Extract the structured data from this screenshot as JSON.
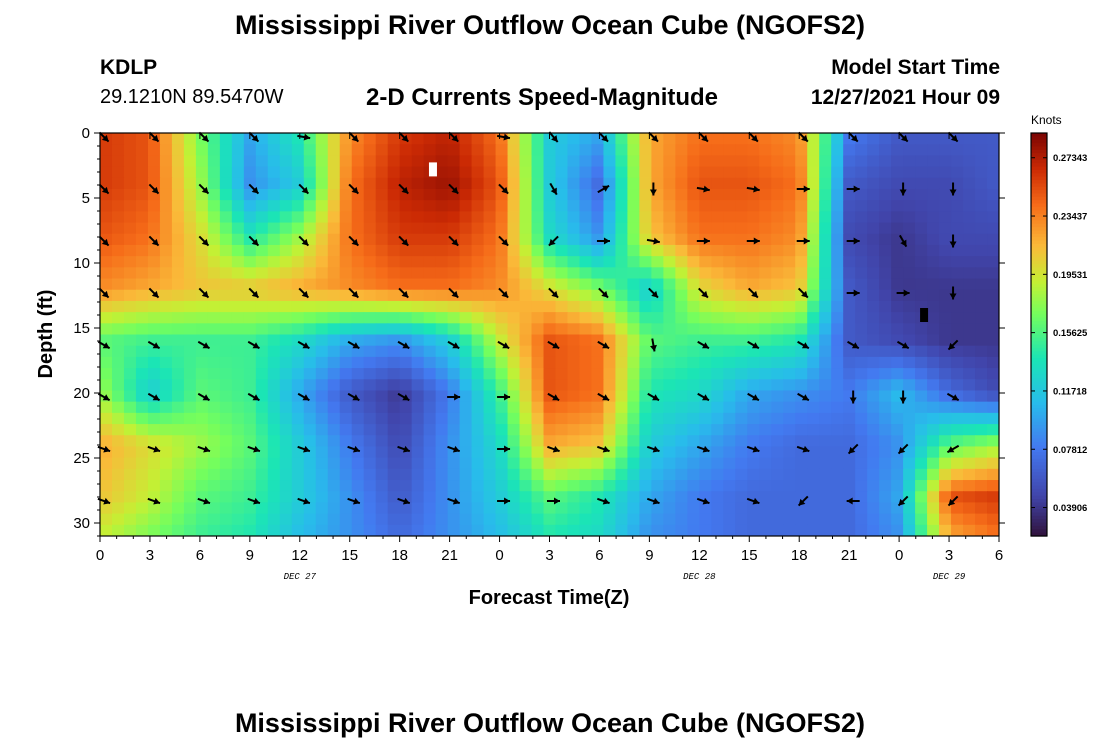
{
  "header": {
    "title": "Mississippi River Outflow Ocean Cube (NGOFS2)",
    "station": "KDLP",
    "coords": "29.1210N  89.5470W",
    "subtitle": "2-D Currents Speed-Magnitude",
    "model_start_label": "Model Start Time",
    "model_start_value": "12/27/2021 Hour 09"
  },
  "footer": {
    "title": "Mississippi River Outflow Ocean Cube (NGOFS2)"
  },
  "chart_data": {
    "type": "heatmap",
    "title": "2-D Currents Speed-Magnitude",
    "xlabel": "Forecast Time(Z)",
    "ylabel": "Depth (ft)",
    "xlim": [
      0,
      54
    ],
    "ylim": [
      31,
      0
    ],
    "x_ticks": [
      {
        "pos": 0,
        "label": "0"
      },
      {
        "pos": 3,
        "label": "3"
      },
      {
        "pos": 6,
        "label": "6"
      },
      {
        "pos": 9,
        "label": "9"
      },
      {
        "pos": 12,
        "label": "12"
      },
      {
        "pos": 15,
        "label": "15"
      },
      {
        "pos": 18,
        "label": "18"
      },
      {
        "pos": 21,
        "label": "21"
      },
      {
        "pos": 24,
        "label": "0"
      },
      {
        "pos": 27,
        "label": "3"
      },
      {
        "pos": 30,
        "label": "6"
      },
      {
        "pos": 33,
        "label": "9"
      },
      {
        "pos": 36,
        "label": "12"
      },
      {
        "pos": 39,
        "label": "15"
      },
      {
        "pos": 42,
        "label": "18"
      },
      {
        "pos": 45,
        "label": "21"
      },
      {
        "pos": 48,
        "label": "0"
      },
      {
        "pos": 51,
        "label": "3"
      },
      {
        "pos": 54,
        "label": "6"
      }
    ],
    "y_ticks": [
      0,
      5,
      10,
      15,
      20,
      25,
      30
    ],
    "date_labels": [
      {
        "pos": 12,
        "label": "DEC 27"
      },
      {
        "pos": 36,
        "label": "DEC 28"
      },
      {
        "pos": 51,
        "label": "DEC 29"
      }
    ],
    "colorbar": {
      "unit": "Knots",
      "min": 0.02,
      "max": 0.29,
      "tick_values": [
        0.27343,
        0.23437,
        0.19531,
        0.15625,
        0.11718,
        0.07812,
        0.03906
      ],
      "tick_labels": [
        "0.27343",
        "0.23437",
        "0.19531",
        "0.15625",
        "0.11718",
        "0.07812",
        "0.03906"
      ]
    },
    "speed_grid": {
      "times": [
        0,
        3,
        6,
        9,
        12,
        15,
        18,
        21,
        24,
        27,
        30,
        33,
        36,
        39,
        42,
        45,
        48,
        51,
        54
      ],
      "depths": [
        0,
        4,
        8,
        12,
        16,
        20,
        24,
        28,
        31
      ],
      "values": [
        [
          0.26,
          0.25,
          0.17,
          0.1,
          0.14,
          0.23,
          0.26,
          0.27,
          0.24,
          0.12,
          0.1,
          0.22,
          0.24,
          0.24,
          0.23,
          0.08,
          0.06,
          0.06,
          0.06
        ],
        [
          0.26,
          0.25,
          0.18,
          0.09,
          0.12,
          0.24,
          0.27,
          0.28,
          0.25,
          0.12,
          0.07,
          0.22,
          0.25,
          0.25,
          0.24,
          0.06,
          0.05,
          0.05,
          0.06
        ],
        [
          0.25,
          0.24,
          0.2,
          0.14,
          0.18,
          0.24,
          0.26,
          0.26,
          0.24,
          0.13,
          0.09,
          0.21,
          0.24,
          0.24,
          0.23,
          0.05,
          0.04,
          0.05,
          0.05
        ],
        [
          0.23,
          0.22,
          0.21,
          0.21,
          0.22,
          0.23,
          0.24,
          0.24,
          0.23,
          0.2,
          0.17,
          0.12,
          0.2,
          0.22,
          0.21,
          0.06,
          0.04,
          0.04,
          0.04
        ],
        [
          0.16,
          0.15,
          0.15,
          0.15,
          0.13,
          0.1,
          0.09,
          0.12,
          0.19,
          0.25,
          0.24,
          0.16,
          0.15,
          0.15,
          0.14,
          0.06,
          0.05,
          0.04,
          0.04
        ],
        [
          0.18,
          0.12,
          0.16,
          0.15,
          0.1,
          0.06,
          0.04,
          0.08,
          0.15,
          0.25,
          0.24,
          0.14,
          0.13,
          0.1,
          0.09,
          0.08,
          0.11,
          0.07,
          0.05
        ],
        [
          0.22,
          0.2,
          0.18,
          0.16,
          0.12,
          0.08,
          0.05,
          0.09,
          0.13,
          0.22,
          0.21,
          0.12,
          0.1,
          0.08,
          0.07,
          0.07,
          0.09,
          0.16,
          0.18
        ],
        [
          0.21,
          0.19,
          0.16,
          0.15,
          0.12,
          0.09,
          0.06,
          0.09,
          0.12,
          0.16,
          0.14,
          0.1,
          0.08,
          0.07,
          0.07,
          0.07,
          0.1,
          0.25,
          0.26
        ],
        [
          0.19,
          0.17,
          0.15,
          0.14,
          0.11,
          0.09,
          0.07,
          0.09,
          0.11,
          0.14,
          0.13,
          0.09,
          0.08,
          0.07,
          0.07,
          0.07,
          0.09,
          0.22,
          0.24
        ]
      ]
    },
    "vectors": {
      "times": [
        0,
        3,
        6,
        9,
        12,
        15,
        18,
        21,
        24,
        27,
        30,
        33,
        36,
        39,
        42,
        45,
        48,
        51
      ],
      "depths": [
        0,
        4,
        8,
        12,
        16,
        20,
        24,
        28
      ],
      "angles": [
        [
          -45,
          -45,
          -45,
          -45,
          -10,
          -45,
          -45,
          -45,
          -10,
          -50,
          -45,
          -45,
          -45,
          -45,
          -45,
          -45,
          -45,
          -45
        ],
        [
          -45,
          -45,
          -45,
          -45,
          -45,
          -45,
          -45,
          -45,
          -45,
          -60,
          30,
          -90,
          -10,
          -10,
          0,
          0,
          -90,
          -90
        ],
        [
          -45,
          -45,
          -45,
          -45,
          -45,
          -45,
          -45,
          -45,
          -45,
          -135,
          0,
          -10,
          0,
          0,
          0,
          0,
          -60,
          -90
        ],
        [
          -45,
          -45,
          -45,
          -45,
          -45,
          -45,
          -45,
          -45,
          -45,
          -45,
          -45,
          -45,
          -45,
          -45,
          -45,
          0,
          0,
          -90
        ],
        [
          -30,
          -30,
          -30,
          -30,
          -30,
          -30,
          -30,
          -30,
          -30,
          -30,
          -30,
          -80,
          -30,
          -30,
          -30,
          -30,
          -30,
          -135
        ],
        [
          -30,
          -30,
          -30,
          -30,
          -30,
          -30,
          -30,
          0,
          0,
          -30,
          -30,
          -30,
          -30,
          -30,
          -30,
          -90,
          -90,
          -30
        ],
        [
          -20,
          -20,
          -20,
          -20,
          -20,
          -20,
          -20,
          -20,
          0,
          -20,
          -20,
          -20,
          -20,
          -20,
          -20,
          -135,
          -135,
          -150
        ],
        [
          -20,
          -20,
          -20,
          -20,
          -20,
          -20,
          -20,
          -20,
          0,
          0,
          -20,
          -20,
          -20,
          -20,
          -135,
          180,
          -135,
          -135
        ]
      ]
    },
    "markers": [
      {
        "x": 20,
        "y": 2.8,
        "color": "#ffffff"
      },
      {
        "x": 49.5,
        "y": 14,
        "color": "#000000"
      }
    ]
  }
}
